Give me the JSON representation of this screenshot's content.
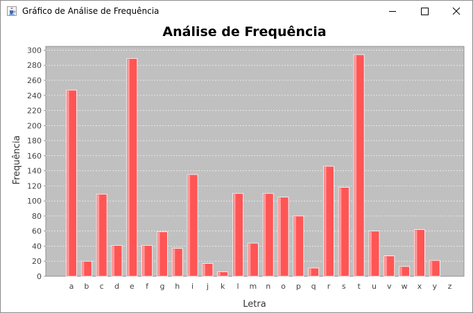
{
  "window": {
    "title": "Gráfico de Análise de Frequência",
    "icon": "java-cup-icon",
    "controls": [
      "minimize-icon",
      "maximize-icon",
      "close-icon"
    ]
  },
  "chart_data": {
    "type": "bar",
    "title": "Análise de Frequência",
    "xlabel": "Letra",
    "ylabel": "Frequência",
    "categories": [
      "a",
      "b",
      "c",
      "d",
      "e",
      "f",
      "g",
      "h",
      "i",
      "j",
      "k",
      "l",
      "m",
      "n",
      "o",
      "p",
      "q",
      "r",
      "s",
      "t",
      "u",
      "v",
      "w",
      "x",
      "y",
      "z"
    ],
    "values": [
      247,
      20,
      109,
      41,
      289,
      41,
      59,
      37,
      135,
      17,
      6,
      110,
      44,
      110,
      105,
      80,
      11,
      146,
      118,
      294,
      60,
      27,
      13,
      62,
      21,
      0
    ],
    "ylim": [
      0,
      305
    ],
    "yticks": [
      0,
      20,
      40,
      60,
      80,
      100,
      120,
      140,
      160,
      180,
      200,
      220,
      240,
      260,
      280,
      300
    ],
    "grid": true,
    "legend": "none",
    "colors": {
      "bar": "#ff5555",
      "bar_highlight": "#ff9c9c",
      "plot_background": "#c0c0c0",
      "gridline": "#ffffff"
    }
  }
}
